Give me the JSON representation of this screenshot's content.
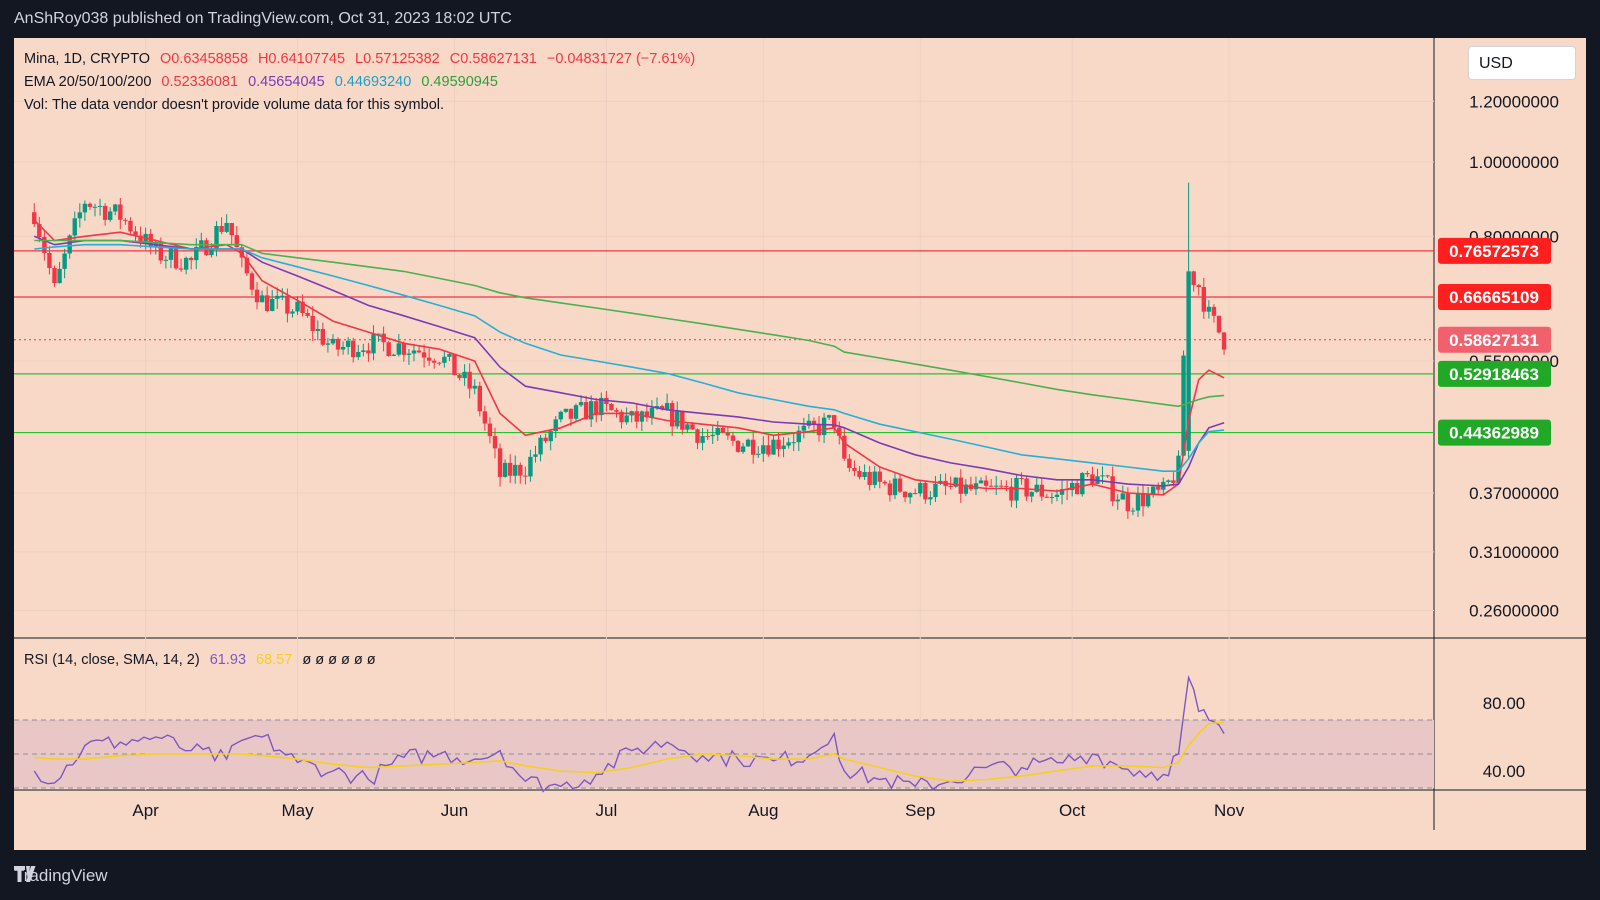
{
  "header": {
    "publisher": "AnShRoy038 published on TradingView.com, Oct 31, 2023 18:02 UTC"
  },
  "legend": {
    "symbol": "Mina, 1D, CRYPTO",
    "open": "O0.63458858",
    "high": "H0.64107745",
    "low": "L0.57125382",
    "close": "C0.58627131",
    "change": "−0.04831727 (−7.61%)",
    "ema_label": "EMA 20/50/100/200",
    "ema_values": [
      "0.52336081",
      "0.45654045",
      "0.44693240",
      "0.49590945"
    ],
    "vol_note": "Vol: The data vendor doesn't provide volume data for this symbol."
  },
  "rsi_legend": {
    "label": "RSI (14, close, SMA, 14, 2)",
    "rsi": "61.93",
    "sma": "68.57",
    "empties": "ø ø ø ø ø ø"
  },
  "currency": "USD",
  "footer": {
    "brand": "TradingView"
  },
  "colors": {
    "background": "#131722",
    "pane": "#f8d9c8",
    "up": "#089981",
    "down": "#f23645",
    "ema20": "#f23645",
    "ema50": "#7b3bb5",
    "ema100": "#26b0d6",
    "ema200": "#4caf50",
    "rsi": "#7e57c2",
    "rsi_sma": "#f5d020"
  },
  "chart_data": {
    "type": "candlestick",
    "x_ticks": [
      "Apr",
      "May",
      "Jun",
      "Jul",
      "Aug",
      "Sep",
      "Oct",
      "Nov"
    ],
    "y_ticks": [
      "1.20000000",
      "1.00000000",
      "0.80000000",
      "0.55000000",
      "0.37000000",
      "0.31000000",
      "0.26000000"
    ],
    "price_labels": [
      {
        "value": "0.76572573",
        "kind": "resistance"
      },
      {
        "value": "0.66665109",
        "kind": "resistance"
      },
      {
        "value": "0.58627131",
        "kind": "last"
      },
      {
        "value": "0.52918463",
        "kind": "support"
      },
      {
        "value": "0.44362989",
        "kind": "support"
      }
    ],
    "y_scale": "log",
    "close_series": [
      [
        "2023-03-10",
        0.86
      ],
      [
        "2023-03-14",
        0.68
      ],
      [
        "2023-03-20",
        0.89
      ],
      [
        "2023-03-27",
        0.85
      ],
      [
        "2023-04-03",
        0.76
      ],
      [
        "2023-04-10",
        0.74
      ],
      [
        "2023-04-17",
        0.84
      ],
      [
        "2023-04-20",
        0.73
      ],
      [
        "2023-04-24",
        0.66
      ],
      [
        "2023-05-01",
        0.64
      ],
      [
        "2023-05-08",
        0.57
      ],
      [
        "2023-05-15",
        0.58
      ],
      [
        "2023-05-22",
        0.575
      ],
      [
        "2023-05-29",
        0.56
      ],
      [
        "2023-06-05",
        0.5
      ],
      [
        "2023-06-10",
        0.39
      ],
      [
        "2023-06-15",
        0.4
      ],
      [
        "2023-06-22",
        0.46
      ],
      [
        "2023-06-29",
        0.48
      ],
      [
        "2023-07-06",
        0.46
      ],
      [
        "2023-07-13",
        0.47
      ],
      [
        "2023-07-20",
        0.44
      ],
      [
        "2023-07-27",
        0.43
      ],
      [
        "2023-08-03",
        0.43
      ],
      [
        "2023-08-10",
        0.445
      ],
      [
        "2023-08-15",
        0.46
      ],
      [
        "2023-08-17",
        0.4
      ],
      [
        "2023-08-24",
        0.38
      ],
      [
        "2023-08-31",
        0.372
      ],
      [
        "2023-09-07",
        0.375
      ],
      [
        "2023-09-14",
        0.372
      ],
      [
        "2023-09-21",
        0.375
      ],
      [
        "2023-09-28",
        0.368
      ],
      [
        "2023-10-05",
        0.39
      ],
      [
        "2023-10-12",
        0.36
      ],
      [
        "2023-10-19",
        0.37
      ],
      [
        "2023-10-22",
        0.4
      ],
      [
        "2023-10-24",
        0.72
      ],
      [
        "2023-10-26",
        0.69
      ],
      [
        "2023-10-28",
        0.63
      ],
      [
        "2023-10-31",
        0.586
      ]
    ],
    "ema": {
      "ema20": [
        0.84,
        0.79,
        0.8,
        0.81,
        0.79,
        0.77,
        0.78,
        0.76,
        0.7,
        0.66,
        0.62,
        0.6,
        0.58,
        0.57,
        0.55,
        0.47,
        0.44,
        0.45,
        0.47,
        0.47,
        0.46,
        0.455,
        0.45,
        0.44,
        0.445,
        0.45,
        0.43,
        0.4,
        0.385,
        0.38,
        0.375,
        0.375,
        0.372,
        0.38,
        0.37,
        0.368,
        0.38,
        0.46,
        0.52,
        0.535,
        0.523
      ],
      "ema50": [
        0.8,
        0.78,
        0.79,
        0.79,
        0.78,
        0.77,
        0.77,
        0.77,
        0.74,
        0.71,
        0.68,
        0.65,
        0.63,
        0.61,
        0.59,
        0.54,
        0.51,
        0.5,
        0.49,
        0.485,
        0.475,
        0.47,
        0.465,
        0.458,
        0.455,
        0.454,
        0.45,
        0.43,
        0.415,
        0.405,
        0.398,
        0.39,
        0.385,
        0.385,
        0.38,
        0.378,
        0.38,
        0.4,
        0.43,
        0.45,
        0.457
      ],
      "ema100": [
        0.77,
        0.775,
        0.78,
        0.78,
        0.775,
        0.77,
        0.77,
        0.77,
        0.75,
        0.73,
        0.71,
        0.69,
        0.67,
        0.65,
        0.63,
        0.6,
        0.58,
        0.56,
        0.55,
        0.54,
        0.53,
        0.515,
        0.5,
        0.49,
        0.48,
        0.475,
        0.47,
        0.455,
        0.445,
        0.435,
        0.425,
        0.415,
        0.41,
        0.405,
        0.4,
        0.395,
        0.395,
        0.41,
        0.43,
        0.445,
        0.447
      ],
      "ema200": [
        0.79,
        0.79,
        0.79,
        0.79,
        0.785,
        0.78,
        0.78,
        0.78,
        0.76,
        0.75,
        0.74,
        0.73,
        0.72,
        0.705,
        0.69,
        0.675,
        0.665,
        0.655,
        0.645,
        0.635,
        0.625,
        0.615,
        0.605,
        0.595,
        0.585,
        0.575,
        0.565,
        0.555,
        0.545,
        0.535,
        0.525,
        0.515,
        0.505,
        0.497,
        0.49,
        0.483,
        0.48,
        0.485,
        0.49,
        0.494,
        0.496
      ]
    },
    "rsi": {
      "levels": [
        70,
        50,
        30
      ],
      "y_ticks": [
        "80.00",
        "40.00"
      ],
      "rsi_series": [
        40,
        33,
        55,
        57,
        60,
        52,
        47,
        58,
        60,
        45,
        40,
        35,
        48,
        50,
        47,
        52,
        34,
        31,
        38,
        52,
        57,
        49,
        47,
        46,
        49,
        62,
        40,
        35,
        31,
        34,
        42,
        42,
        45,
        50,
        41,
        38,
        50,
        95,
        75,
        70,
        62
      ],
      "sma_series": [
        48,
        47,
        47,
        49,
        50,
        50,
        50,
        50,
        49,
        47,
        44,
        42,
        43,
        44,
        45,
        46,
        43,
        40,
        39,
        42,
        47,
        50,
        49,
        47,
        47,
        50,
        47,
        42,
        37,
        34,
        35,
        37,
        40,
        43,
        43,
        42,
        45,
        55,
        62,
        68,
        68.57
      ]
    }
  }
}
